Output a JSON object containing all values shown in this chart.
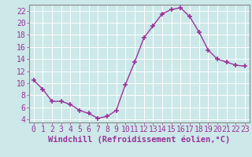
{
  "x": [
    0,
    1,
    2,
    3,
    4,
    5,
    6,
    7,
    8,
    9,
    10,
    11,
    12,
    13,
    14,
    15,
    16,
    17,
    18,
    19,
    20,
    21,
    22,
    23
  ],
  "y": [
    10.5,
    9.0,
    7.0,
    7.0,
    6.5,
    5.5,
    5.0,
    4.2,
    4.5,
    5.5,
    9.8,
    13.5,
    17.5,
    19.5,
    21.5,
    22.2,
    22.5,
    21.0,
    18.5,
    15.5,
    14.0,
    13.5,
    13.0,
    12.8
  ],
  "line_color": "#993399",
  "marker": "+",
  "marker_size": 5,
  "marker_lw": 1.2,
  "bg_color": "#cce8e8",
  "grid_color": "#b0d0d0",
  "xlabel": "Windchill (Refroidissement éolien,°C)",
  "xlabel_fontsize": 7.5,
  "tick_fontsize": 7,
  "ylim": [
    3.5,
    23.0
  ],
  "yticks": [
    4,
    6,
    8,
    10,
    12,
    14,
    16,
    18,
    20,
    22
  ],
  "xticks": [
    0,
    1,
    2,
    3,
    4,
    5,
    6,
    7,
    8,
    9,
    10,
    11,
    12,
    13,
    14,
    15,
    16,
    17,
    18,
    19,
    20,
    21,
    22,
    23
  ],
  "xlim": [
    -0.5,
    23.5
  ],
  "spine_color": "#888888",
  "line_width": 1.0
}
